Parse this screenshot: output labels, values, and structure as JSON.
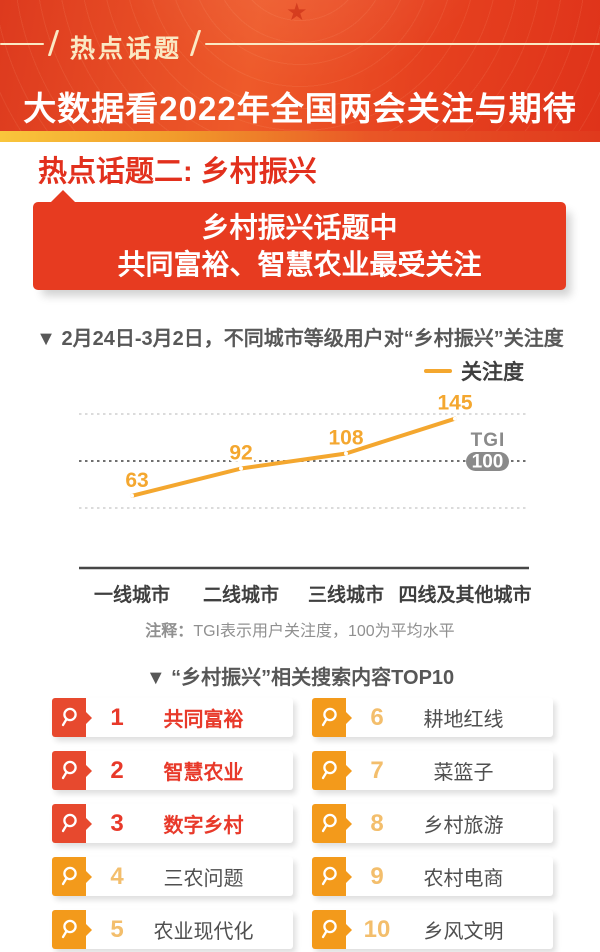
{
  "header": {
    "tag": "热点话题",
    "title": "大数据看2022年全国两会关注与期待"
  },
  "section": {
    "heading": "热点话题二: 乡村振兴",
    "banner_line1": "乡村振兴话题中",
    "banner_line2": "共同富裕、智慧农业最受关注"
  },
  "chart": {
    "title": "▼ 2月24日-3月2日，不同城市等级用户对“乡村振兴”关注度",
    "legend": "关注度",
    "tgi_label": "TGI",
    "tgi_value": "100",
    "note_prefix": "注释：",
    "note_text": "TGI表示用户关注度，100为平均水平"
  },
  "chart_data": {
    "type": "line",
    "title": "2月24日-3月2日，不同城市等级用户对“乡村振兴”关注度",
    "categories": [
      "一线城市",
      "二线城市",
      "三线城市",
      "四线及其他城市"
    ],
    "series": [
      {
        "name": "关注度",
        "values": [
          63,
          92,
          108,
          145
        ]
      }
    ],
    "reference_line": {
      "label": "TGI",
      "value": 100,
      "note": "100为平均水平"
    },
    "ylim": [
      50,
      150
    ],
    "gridlines": [
      50,
      100,
      150
    ],
    "grid": "dotted",
    "legend_position": "top-right",
    "line_color": "#f4a72f",
    "label_color": "#f4a72f"
  },
  "top10": {
    "heading": "▼ “乡村振兴”相关搜索内容TOP10",
    "items": [
      {
        "rank": "1",
        "label": "共同富裕",
        "highlight": true
      },
      {
        "rank": "2",
        "label": "智慧农业",
        "highlight": true
      },
      {
        "rank": "3",
        "label": "数字乡村",
        "highlight": true
      },
      {
        "rank": "4",
        "label": "三农问题",
        "highlight": false
      },
      {
        "rank": "5",
        "label": "农业现代化",
        "highlight": false
      },
      {
        "rank": "6",
        "label": "耕地红线",
        "highlight": false
      },
      {
        "rank": "7",
        "label": "菜篮子",
        "highlight": false
      },
      {
        "rank": "8",
        "label": "乡村旅游",
        "highlight": false
      },
      {
        "rank": "9",
        "label": "农村电商",
        "highlight": false
      },
      {
        "rank": "10",
        "label": "乡风文明",
        "highlight": false
      }
    ]
  },
  "colors": {
    "header_red": "#e0381c",
    "stripe_yellow": "#f9c63c",
    "banner_red": "#e73b20",
    "accent_orange": "#f4a72f",
    "badge_red": "#e7492e",
    "badge_orange": "#f39a1b",
    "tgi_badge_gray": "#8a8a8a"
  }
}
